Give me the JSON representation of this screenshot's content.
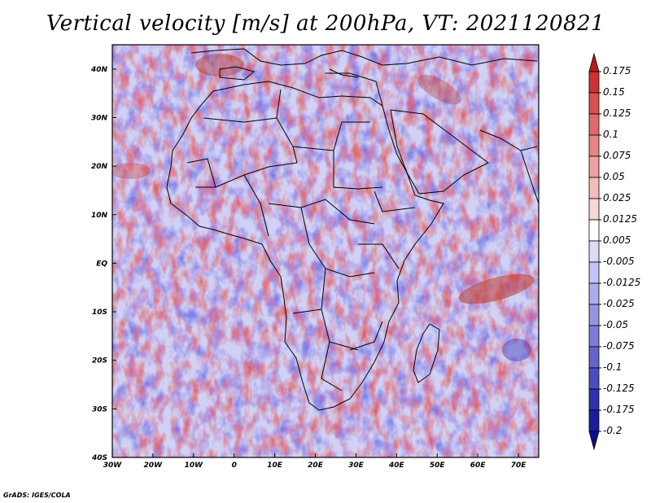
{
  "title": "Vertical velocity [m/s] at 200hPa, VT: 2021120821",
  "credit": "GrADS: IGES/COLA",
  "map": {
    "lon_range": [
      -30,
      75
    ],
    "lat_range": [
      -40,
      45
    ],
    "lon_ticks": [
      {
        "value": -30,
        "label": "30W"
      },
      {
        "value": -20,
        "label": "20W"
      },
      {
        "value": -10,
        "label": "10W"
      },
      {
        "value": 0,
        "label": "0"
      },
      {
        "value": 10,
        "label": "10E"
      },
      {
        "value": 20,
        "label": "20E"
      },
      {
        "value": 30,
        "label": "30E"
      },
      {
        "value": 40,
        "label": "40E"
      },
      {
        "value": 50,
        "label": "50E"
      },
      {
        "value": 60,
        "label": "60E"
      },
      {
        "value": 70,
        "label": "70E"
      }
    ],
    "lat_ticks": [
      {
        "value": 40,
        "label": "40N"
      },
      {
        "value": 30,
        "label": "30N"
      },
      {
        "value": 20,
        "label": "20N"
      },
      {
        "value": 10,
        "label": "10N"
      },
      {
        "value": 0,
        "label": "EQ"
      },
      {
        "value": -10,
        "label": "10S"
      },
      {
        "value": -20,
        "label": "20S"
      },
      {
        "value": -30,
        "label": "30S"
      },
      {
        "value": -40,
        "label": "40S"
      }
    ]
  },
  "colorbar": {
    "labels": [
      "0.175",
      "0.15",
      "0.125",
      "0.1",
      "0.075",
      "0.05",
      "0.025",
      "0.0125",
      "0.005",
      "-0.005",
      "-0.0125",
      "-0.025",
      "-0.05",
      "-0.075",
      "-0.1",
      "-0.125",
      "-0.175",
      "-0.2"
    ],
    "colors": [
      "#b71c1c",
      "#cc3333",
      "#d95050",
      "#e06a6a",
      "#e88484",
      "#efa0a0",
      "#f4bcbc",
      "#f9d6d6",
      "#ffffff",
      "#dcdcf8",
      "#c4c4f2",
      "#acacec",
      "#9494e2",
      "#7c7cd8",
      "#6464cc",
      "#4c4cc0",
      "#3030b0",
      "#1c1ca0",
      "#0f0f90"
    ]
  }
}
